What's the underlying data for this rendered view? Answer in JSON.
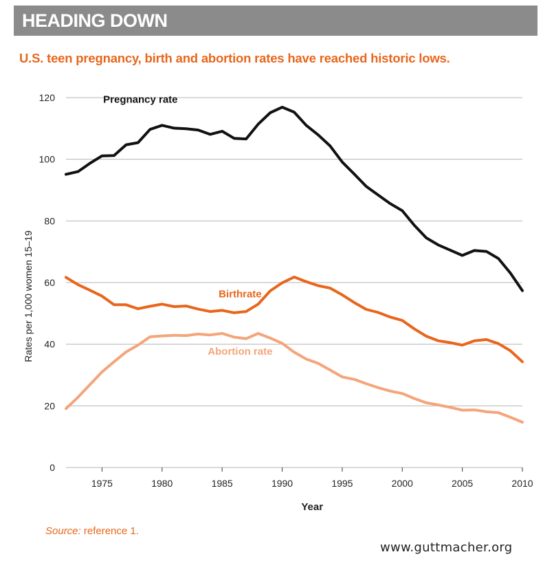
{
  "header": {
    "banner_title": "HEADING DOWN",
    "subtitle": "U.S. teen pregnancy, birth and abortion rates have reached historic lows."
  },
  "footer": {
    "source_label": "Source:",
    "source_text": " reference 1.",
    "website": "www.guttmacher.org"
  },
  "colors": {
    "pregnancy": "#111111",
    "birth": "#e8661c",
    "abortion": "#f4a57a",
    "grid": "#b5b5b5",
    "banner": "#8b8b8b"
  },
  "chart_data": {
    "type": "line",
    "title": "U.S. teen pregnancy, birth and abortion rates have reached historic lows.",
    "xlabel": "Year",
    "ylabel": "Rates per 1,000 women 15–19",
    "xlim": [
      1972,
      2010
    ],
    "ylim": [
      0,
      120
    ],
    "yticks": [
      0,
      20,
      40,
      60,
      80,
      100,
      120
    ],
    "xticks": [
      1975,
      1980,
      1985,
      1990,
      1995,
      2000,
      2005,
      2010
    ],
    "grid": true,
    "x": [
      1972,
      1973,
      1974,
      1975,
      1976,
      1977,
      1978,
      1979,
      1980,
      1981,
      1982,
      1983,
      1984,
      1985,
      1986,
      1987,
      1988,
      1989,
      1990,
      1991,
      1992,
      1993,
      1994,
      1995,
      1996,
      1997,
      1998,
      1999,
      2000,
      2001,
      2002,
      2003,
      2004,
      2005,
      2006,
      2007,
      2008,
      2009,
      2010
    ],
    "series": [
      {
        "name": "Pregnancy rate",
        "color": "#111111",
        "label_pos": "upper-left",
        "values": [
          95.1,
          96.0,
          98.7,
          101.1,
          101.2,
          104.7,
          105.4,
          109.7,
          111.0,
          110.1,
          109.9,
          109.5,
          108.1,
          109.1,
          106.8,
          106.6,
          111.4,
          115.1,
          116.9,
          115.3,
          111.0,
          107.9,
          104.3,
          99.1,
          95.2,
          91.2,
          88.4,
          85.6,
          83.3,
          78.6,
          74.5,
          72.2,
          70.5,
          68.8,
          70.4,
          70.1,
          67.8,
          63.1,
          57.4
        ]
      },
      {
        "name": "Birthrate",
        "color": "#e8661c",
        "label_pos": "middle",
        "values": [
          61.7,
          59.3,
          57.5,
          55.6,
          52.8,
          52.8,
          51.5,
          52.3,
          53.0,
          52.2,
          52.4,
          51.4,
          50.6,
          51.0,
          50.2,
          50.6,
          53.0,
          57.3,
          59.9,
          61.8,
          60.3,
          59.0,
          58.2,
          56.0,
          53.5,
          51.3,
          50.3,
          48.8,
          47.7,
          45.0,
          42.6,
          41.1,
          40.5,
          39.7,
          41.1,
          41.5,
          40.2,
          37.9,
          34.3
        ]
      },
      {
        "name": "Abortion rate",
        "color": "#f4a57a",
        "label_pos": "middle",
        "values": [
          19.1,
          22.8,
          26.9,
          31.0,
          34.3,
          37.5,
          39.7,
          42.4,
          42.7,
          42.9,
          42.8,
          43.3,
          43.0,
          43.5,
          42.3,
          41.8,
          43.5,
          42.0,
          40.3,
          37.4,
          35.2,
          33.8,
          31.6,
          29.4,
          28.6,
          27.2,
          25.9,
          24.8,
          24.0,
          22.4,
          21.0,
          20.3,
          19.5,
          18.6,
          18.7,
          18.1,
          17.8,
          16.3,
          14.7
        ]
      }
    ]
  }
}
